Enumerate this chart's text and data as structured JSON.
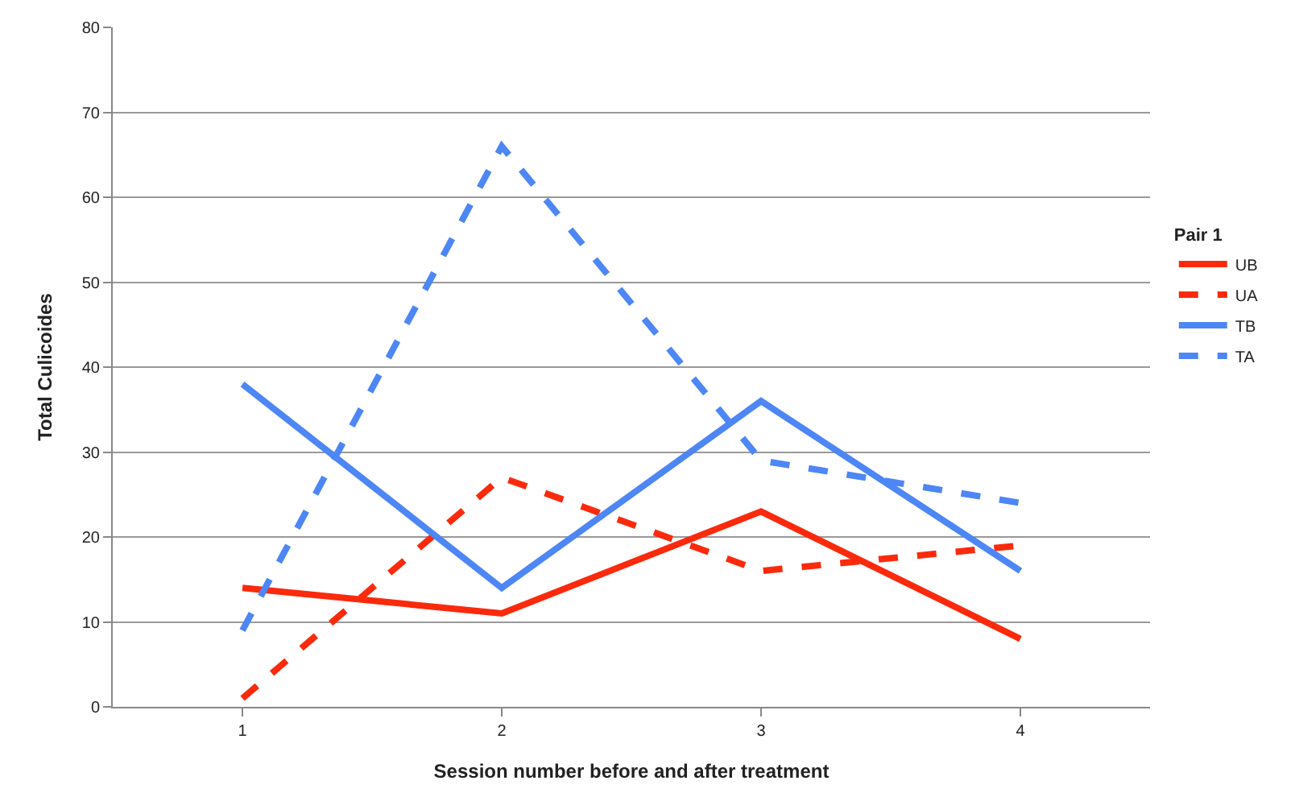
{
  "chart_data": {
    "type": "line",
    "xlabel": "Session number before and after treatment",
    "ylabel": "Total Culicoides",
    "legend_title": "Pair 1",
    "categories": [
      "1",
      "2",
      "3",
      "4"
    ],
    "series": [
      {
        "name": "UB",
        "color": "#fb2a0c",
        "values": [
          14,
          11,
          23,
          8
        ],
        "line_style": "solid"
      },
      {
        "name": "UA",
        "color": "#fb2a0c",
        "values": [
          1,
          27,
          16,
          19
        ],
        "line_style": "dashed"
      },
      {
        "name": "TB",
        "color": "#4d86f5",
        "values": [
          38,
          14,
          36,
          16
        ],
        "line_style": "solid"
      },
      {
        "name": "TA",
        "color": "#4d86f5",
        "values": [
          9,
          66,
          29,
          24
        ],
        "line_style": "dashed"
      }
    ],
    "ylim": [
      0,
      80
    ],
    "yticks": [
      0,
      10,
      20,
      30,
      40,
      50,
      60,
      70,
      80
    ],
    "grid": "y",
    "legend": "right",
    "marker": "none"
  }
}
